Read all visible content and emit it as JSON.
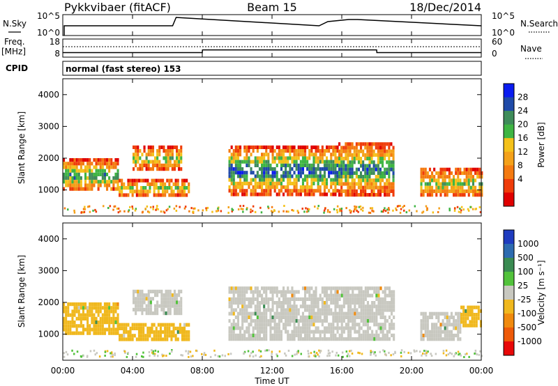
{
  "header": {
    "radar": "Pykkvibaer (fitACF)",
    "beam": "Beam 15",
    "date": "18/Dec/2014"
  },
  "noise_panel": {
    "left_label": "N.Sky",
    "right_label": "N.Search",
    "left_ticks": [
      "10^5",
      "10^0"
    ],
    "right_ticks": [
      "10^5",
      "10^0"
    ]
  },
  "freq_panel": {
    "left_label": "Freq.",
    "left_unit": "[MHz]",
    "right_label": "Nave",
    "left_ticks": [
      "18",
      "8"
    ],
    "right_ticks": [
      "60",
      "0"
    ]
  },
  "cpid": {
    "label": "CPID",
    "text": "normal (fast stereo) 153"
  },
  "power_panel": {
    "ylabel": "Slant Range [km]",
    "yticks": [
      "4000",
      "3000",
      "2000",
      "1000"
    ],
    "colorbar_label": "Power [dB]",
    "colorbar_ticks": [
      "28",
      "24",
      "20",
      "16",
      "12",
      "8",
      "4"
    ],
    "colors": [
      "#0a1cf0",
      "#1f4aa8",
      "#3f8c5a",
      "#3fb543",
      "#f4c11a",
      "#f4a11a",
      "#f47a10",
      "#ef3c0a",
      "#e00000"
    ]
  },
  "velocity_panel": {
    "ylabel": "Slant Range [km]",
    "yticks": [
      "4000",
      "3000",
      "2000",
      "1000"
    ],
    "colorbar_label": "Velocity [m s⁻¹]",
    "colorbar_ticks": [
      "1000",
      "500",
      "100",
      "25",
      "-25",
      "-100",
      "-500",
      "-1000"
    ],
    "colors": [
      "#1f3cbf",
      "#2d6bb0",
      "#3a8b52",
      "#52c23b",
      "#c8c8c0",
      "#f0b81e",
      "#f08a0e",
      "#ee5a08",
      "#e80808"
    ]
  },
  "xaxis": {
    "label": "Time UT",
    "ticks": [
      "00:00",
      "04:00",
      "08:00",
      "12:00",
      "16:00",
      "20:00",
      "00:00"
    ]
  },
  "chart_data": [
    {
      "type": "line",
      "x_label": "Time UT",
      "x": [
        0,
        6.3,
        6.5,
        14.7,
        15.2,
        16.4,
        16.9,
        24
      ],
      "y": [
        1,
        1,
        5,
        1,
        3,
        4,
        4,
        1
      ],
      "xlim": [
        0,
        24
      ],
      "series": [
        {
          "name": "N.Sky"
        }
      ]
    },
    {
      "type": "line",
      "x_label": "Time UT",
      "x": [
        0,
        8,
        8.01,
        18,
        18.01,
        24
      ],
      "y": [
        10.5,
        10.5,
        12,
        12,
        10.5,
        10.5
      ],
      "xlim": [
        0,
        24
      ],
      "ylim": [
        8,
        18
      ],
      "series": [
        {
          "name": "Freq."
        }
      ]
    },
    {
      "type": "heatmap",
      "x_label": "Time UT",
      "ylabel": "Slant Range [km]",
      "xlim": [
        0,
        24
      ],
      "ylim": [
        180,
        4500
      ],
      "colorbar": "Power [dB]",
      "clim": [
        0,
        30
      ],
      "regions": [
        {
          "t0": 0.0,
          "t1": 3.2,
          "r0": 1000,
          "r1": 2000,
          "v": 18
        },
        {
          "t0": 3.2,
          "t1": 7.2,
          "r0": 850,
          "r1": 1350,
          "v": 14
        },
        {
          "t0": 4.0,
          "t1": 6.8,
          "r0": 1700,
          "r1": 2400,
          "v": 14
        },
        {
          "t0": 9.5,
          "t1": 15.8,
          "r0": 900,
          "r1": 2400,
          "v": 22
        },
        {
          "t0": 15.8,
          "t1": 19.0,
          "r0": 900,
          "r1": 2500,
          "v": 20
        },
        {
          "t0": 20.5,
          "t1": 24.0,
          "r0": 800,
          "r1": 1700,
          "v": 14
        }
      ]
    },
    {
      "type": "heatmap",
      "x_label": "Time UT",
      "ylabel": "Slant Range [km]",
      "xlim": [
        0,
        24
      ],
      "ylim": [
        180,
        4500
      ],
      "colorbar": "Velocity [m s⁻¹]",
      "clim": [
        -1000,
        1000
      ],
      "regions": [
        {
          "t0": 0.0,
          "t1": 3.2,
          "r0": 1000,
          "r1": 2000,
          "v": -200
        },
        {
          "t0": 3.2,
          "t1": 7.2,
          "r0": 850,
          "r1": 1350,
          "v": -150
        },
        {
          "t0": 4.0,
          "t1": 6.8,
          "r0": 1700,
          "r1": 2400,
          "v": 0
        },
        {
          "t0": 9.5,
          "t1": 19.0,
          "r0": 900,
          "r1": 2500,
          "v": 0
        },
        {
          "t0": 20.5,
          "t1": 22.8,
          "r0": 800,
          "r1": 1700,
          "v": 0
        },
        {
          "t0": 22.8,
          "t1": 24.0,
          "r0": 1300,
          "r1": 1900,
          "v": -200
        }
      ]
    }
  ]
}
